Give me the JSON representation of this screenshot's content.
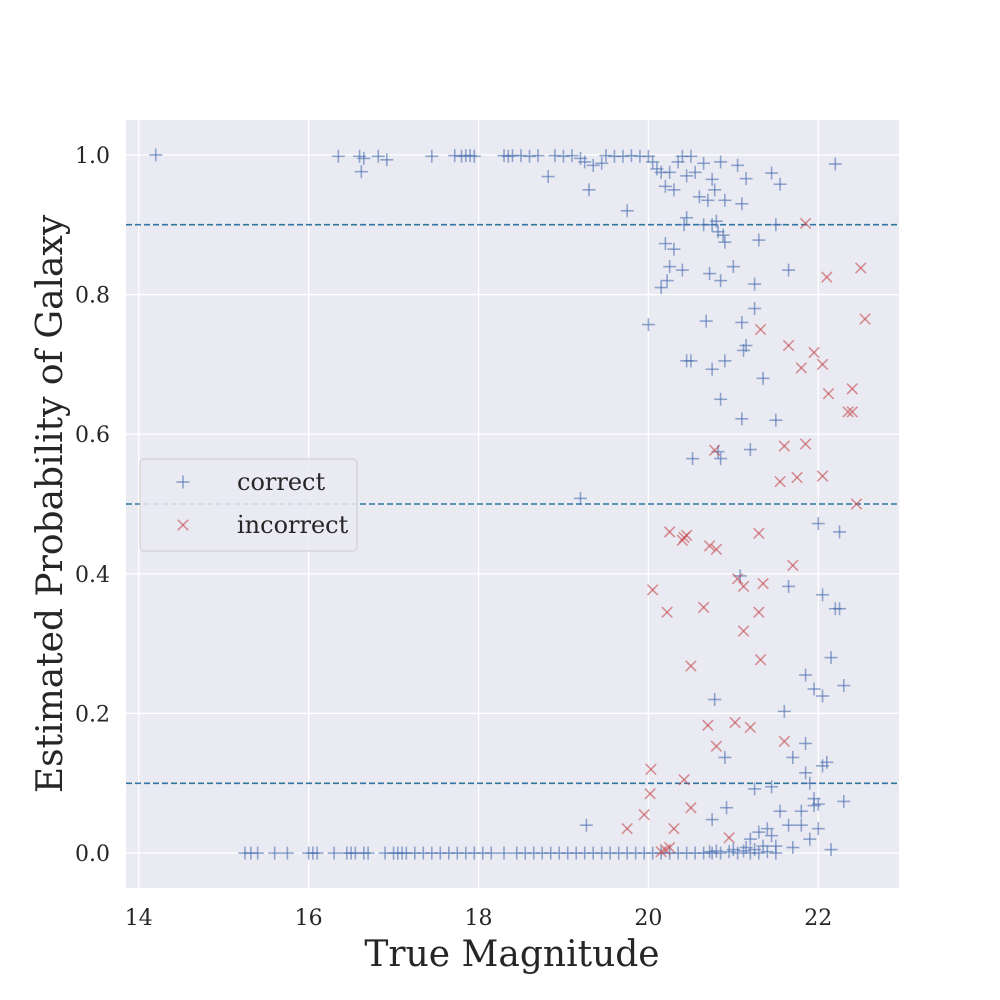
{
  "chart_data": {
    "type": "scatter",
    "title": "",
    "xlabel": "True Magnitude",
    "ylabel": "Estimated Probability of Galaxy",
    "xlim": [
      13.85,
      22.95
    ],
    "ylim": [
      -0.05,
      1.05
    ],
    "xticks": [
      14,
      16,
      18,
      20,
      22
    ],
    "xtick_labels": [
      "14",
      "16",
      "18",
      "20",
      "22"
    ],
    "yticks": [
      0.0,
      0.2,
      0.4,
      0.6,
      0.8,
      1.0
    ],
    "ytick_labels": [
      "0.0",
      "0.2",
      "0.4",
      "0.6",
      "0.8",
      "1.0"
    ],
    "grid": true,
    "background": "#eaeaf2",
    "reference_lines": [
      0.1,
      0.5,
      0.9
    ],
    "reference_line_color": "#3274a1",
    "legend_position": "center-left",
    "series": [
      {
        "name": "correct",
        "marker": "plus",
        "color": "#4c72b0",
        "points": [
          [
            14.2,
            1.0
          ],
          [
            16.35,
            0.998
          ],
          [
            16.6,
            0.998
          ],
          [
            16.65,
            0.995
          ],
          [
            16.62,
            0.976
          ],
          [
            16.82,
            0.998
          ],
          [
            16.92,
            0.993
          ],
          [
            17.45,
            0.998
          ],
          [
            17.72,
            0.999
          ],
          [
            17.8,
            0.998
          ],
          [
            17.85,
            0.999
          ],
          [
            17.9,
            0.999
          ],
          [
            17.95,
            0.998
          ],
          [
            18.3,
            0.999
          ],
          [
            18.35,
            0.998
          ],
          [
            18.4,
            0.999
          ],
          [
            18.5,
            0.999
          ],
          [
            18.6,
            0.998
          ],
          [
            18.7,
            0.999
          ],
          [
            18.82,
            0.969
          ],
          [
            18.9,
            0.999
          ],
          [
            19.0,
            0.998
          ],
          [
            19.1,
            0.999
          ],
          [
            19.2,
            0.995
          ],
          [
            19.25,
            0.99
          ],
          [
            19.3,
            0.95
          ],
          [
            19.35,
            0.985
          ],
          [
            19.45,
            0.988
          ],
          [
            19.5,
            0.999
          ],
          [
            19.6,
            0.998
          ],
          [
            19.7,
            0.998
          ],
          [
            19.75,
            0.92
          ],
          [
            19.8,
            0.999
          ],
          [
            19.9,
            0.998
          ],
          [
            20.0,
            0.998
          ],
          [
            20.05,
            0.99
          ],
          [
            20.1,
            0.98
          ],
          [
            20.15,
            0.975
          ],
          [
            20.2,
            0.955
          ],
          [
            20.25,
            0.975
          ],
          [
            20.3,
            0.95
          ],
          [
            20.35,
            0.99
          ],
          [
            20.4,
            0.998
          ],
          [
            20.45,
            0.97
          ],
          [
            20.5,
            0.998
          ],
          [
            20.55,
            0.975
          ],
          [
            20.6,
            0.94
          ],
          [
            20.65,
            0.988
          ],
          [
            20.7,
            0.935
          ],
          [
            20.75,
            0.965
          ],
          [
            20.78,
            0.95
          ],
          [
            20.85,
            0.99
          ],
          [
            20.9,
            0.935
          ],
          [
            21.05,
            0.985
          ],
          [
            21.1,
            0.93
          ],
          [
            21.15,
            0.966
          ],
          [
            21.45,
            0.974
          ],
          [
            21.55,
            0.958
          ],
          [
            22.2,
            0.987
          ],
          [
            20.42,
            0.9
          ],
          [
            20.45,
            0.91
          ],
          [
            20.65,
            0.9
          ],
          [
            20.75,
            0.9
          ],
          [
            20.8,
            0.905
          ],
          [
            20.82,
            0.89
          ],
          [
            20.88,
            0.885
          ],
          [
            20.9,
            0.875
          ],
          [
            21.3,
            0.878
          ],
          [
            21.5,
            0.9
          ],
          [
            20.2,
            0.873
          ],
          [
            20.3,
            0.865
          ],
          [
            20.25,
            0.84
          ],
          [
            20.4,
            0.835
          ],
          [
            20.15,
            0.81
          ],
          [
            20.22,
            0.82
          ],
          [
            20.72,
            0.83
          ],
          [
            20.85,
            0.82
          ],
          [
            21.0,
            0.84
          ],
          [
            21.25,
            0.815
          ],
          [
            21.65,
            0.835
          ],
          [
            20.0,
            0.757
          ],
          [
            20.68,
            0.762
          ],
          [
            21.1,
            0.76
          ],
          [
            21.25,
            0.78
          ],
          [
            20.45,
            0.705
          ],
          [
            20.5,
            0.705
          ],
          [
            20.75,
            0.693
          ],
          [
            20.9,
            0.705
          ],
          [
            21.12,
            0.72
          ],
          [
            21.15,
            0.727
          ],
          [
            21.35,
            0.68
          ],
          [
            20.85,
            0.65
          ],
          [
            21.1,
            0.622
          ],
          [
            21.5,
            0.62
          ],
          [
            20.82,
            0.575
          ],
          [
            20.85,
            0.565
          ],
          [
            21.2,
            0.578
          ],
          [
            20.52,
            0.565
          ],
          [
            19.2,
            0.508
          ],
          [
            22.0,
            0.472
          ],
          [
            22.25,
            0.46
          ],
          [
            21.08,
            0.397
          ],
          [
            21.65,
            0.382
          ],
          [
            22.05,
            0.37
          ],
          [
            22.2,
            0.35
          ],
          [
            22.25,
            0.35
          ],
          [
            21.85,
            0.255
          ],
          [
            22.15,
            0.28
          ],
          [
            21.95,
            0.235
          ],
          [
            22.3,
            0.24
          ],
          [
            22.05,
            0.225
          ],
          [
            20.78,
            0.22
          ],
          [
            21.6,
            0.203
          ],
          [
            21.85,
            0.157
          ],
          [
            20.9,
            0.137
          ],
          [
            21.7,
            0.137
          ],
          [
            21.85,
            0.115
          ],
          [
            22.05,
            0.125
          ],
          [
            22.1,
            0.13
          ],
          [
            21.9,
            0.1
          ],
          [
            21.45,
            0.095
          ],
          [
            21.25,
            0.092
          ],
          [
            21.95,
            0.078
          ],
          [
            22.3,
            0.074
          ],
          [
            21.95,
            0.068
          ],
          [
            22.0,
            0.07
          ],
          [
            20.92,
            0.065
          ],
          [
            21.55,
            0.06
          ],
          [
            21.8,
            0.06
          ],
          [
            20.75,
            0.048
          ],
          [
            19.27,
            0.04
          ],
          [
            21.65,
            0.04
          ],
          [
            21.8,
            0.04
          ],
          [
            22.0,
            0.035
          ],
          [
            21.4,
            0.035
          ],
          [
            21.3,
            0.03
          ],
          [
            21.45,
            0.025
          ],
          [
            21.2,
            0.02
          ],
          [
            21.9,
            0.02
          ],
          [
            22.15,
            0.005
          ],
          [
            21.7,
            0.008
          ],
          [
            21.0,
            0.005
          ],
          [
            21.15,
            0.008
          ],
          [
            21.35,
            0.01
          ],
          [
            21.5,
            0.01
          ],
          [
            15.25,
            0.0
          ],
          [
            15.32,
            0.0
          ],
          [
            15.4,
            0.0
          ],
          [
            15.6,
            0.0
          ],
          [
            15.75,
            0.0
          ],
          [
            16.0,
            0.0
          ],
          [
            16.05,
            0.0
          ],
          [
            16.1,
            0.0
          ],
          [
            16.3,
            0.0
          ],
          [
            16.45,
            0.0
          ],
          [
            16.5,
            0.0
          ],
          [
            16.55,
            0.0
          ],
          [
            16.65,
            0.0
          ],
          [
            16.7,
            0.0
          ],
          [
            16.9,
            0.0
          ],
          [
            17.0,
            0.0
          ],
          [
            17.05,
            0.0
          ],
          [
            17.1,
            0.0
          ],
          [
            17.15,
            0.0
          ],
          [
            17.25,
            0.0
          ],
          [
            17.35,
            0.0
          ],
          [
            17.45,
            0.0
          ],
          [
            17.55,
            0.0
          ],
          [
            17.65,
            0.0
          ],
          [
            17.75,
            0.0
          ],
          [
            17.85,
            0.0
          ],
          [
            17.95,
            0.0
          ],
          [
            18.05,
            0.0
          ],
          [
            18.15,
            0.0
          ],
          [
            18.3,
            0.0
          ],
          [
            18.45,
            0.0
          ],
          [
            18.55,
            0.0
          ],
          [
            18.65,
            0.0
          ],
          [
            18.75,
            0.0
          ],
          [
            18.85,
            0.0
          ],
          [
            18.95,
            0.0
          ],
          [
            19.05,
            0.0
          ],
          [
            19.15,
            0.0
          ],
          [
            19.25,
            0.0
          ],
          [
            19.35,
            0.0
          ],
          [
            19.45,
            0.0
          ],
          [
            19.55,
            0.0
          ],
          [
            19.65,
            0.0
          ],
          [
            19.75,
            0.0
          ],
          [
            19.85,
            0.0
          ],
          [
            19.95,
            0.0
          ],
          [
            20.05,
            0.0
          ],
          [
            20.15,
            0.0
          ],
          [
            20.25,
            0.0
          ],
          [
            20.35,
            0.0
          ],
          [
            20.45,
            0.0
          ],
          [
            20.55,
            0.0
          ],
          [
            20.65,
            0.0
          ],
          [
            20.72,
            0.002
          ],
          [
            20.75,
            0.0
          ],
          [
            20.8,
            0.003
          ],
          [
            20.85,
            0.0
          ],
          [
            20.95,
            0.002
          ],
          [
            21.05,
            0.0
          ],
          [
            21.12,
            0.003
          ],
          [
            21.2,
            0.0
          ],
          [
            21.25,
            0.005
          ],
          [
            21.3,
            0.0
          ],
          [
            21.4,
            0.002
          ],
          [
            21.5,
            0.0
          ]
        ]
      },
      {
        "name": "incorrect",
        "marker": "x",
        "color": "#c44e52",
        "points": [
          [
            21.85,
            0.902
          ],
          [
            22.5,
            0.838
          ],
          [
            22.1,
            0.825
          ],
          [
            22.55,
            0.765
          ],
          [
            21.32,
            0.75
          ],
          [
            21.65,
            0.727
          ],
          [
            21.95,
            0.717
          ],
          [
            22.05,
            0.7
          ],
          [
            21.8,
            0.695
          ],
          [
            22.4,
            0.665
          ],
          [
            22.12,
            0.658
          ],
          [
            22.4,
            0.632
          ],
          [
            22.35,
            0.632
          ],
          [
            20.78,
            0.577
          ],
          [
            21.6,
            0.583
          ],
          [
            21.85,
            0.586
          ],
          [
            21.55,
            0.532
          ],
          [
            21.75,
            0.538
          ],
          [
            22.05,
            0.54
          ],
          [
            22.45,
            0.5
          ],
          [
            20.25,
            0.46
          ],
          [
            20.45,
            0.455
          ],
          [
            20.4,
            0.448
          ],
          [
            20.42,
            0.452
          ],
          [
            20.72,
            0.44
          ],
          [
            20.8,
            0.435
          ],
          [
            21.3,
            0.458
          ],
          [
            21.7,
            0.412
          ],
          [
            20.05,
            0.377
          ],
          [
            21.05,
            0.393
          ],
          [
            21.12,
            0.382
          ],
          [
            21.35,
            0.386
          ],
          [
            20.22,
            0.345
          ],
          [
            20.65,
            0.352
          ],
          [
            21.3,
            0.345
          ],
          [
            21.12,
            0.318
          ],
          [
            21.32,
            0.277
          ],
          [
            20.5,
            0.268
          ],
          [
            20.7,
            0.183
          ],
          [
            21.02,
            0.187
          ],
          [
            21.2,
            0.18
          ],
          [
            21.6,
            0.16
          ],
          [
            20.8,
            0.153
          ],
          [
            20.03,
            0.12
          ],
          [
            20.42,
            0.105
          ],
          [
            20.02,
            0.085
          ],
          [
            20.5,
            0.065
          ],
          [
            20.95,
            0.022
          ],
          [
            19.95,
            0.055
          ],
          [
            19.75,
            0.035
          ],
          [
            20.3,
            0.035
          ],
          [
            20.2,
            0.005
          ],
          [
            20.25,
            0.008
          ],
          [
            20.15,
            0.002
          ]
        ]
      }
    ]
  }
}
